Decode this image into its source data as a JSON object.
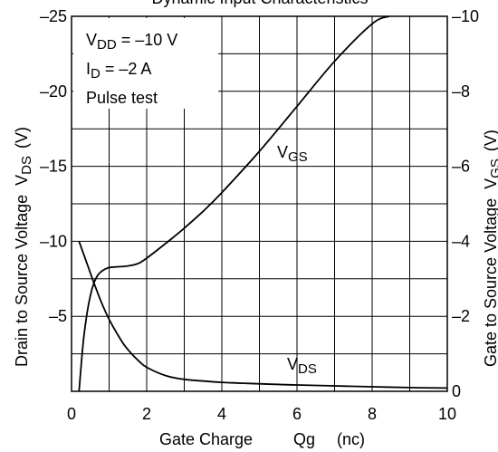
{
  "chart_data": {
    "type": "line",
    "title": "Dynamic Input Characteristics",
    "xlabel": {
      "main": "Gate Charge",
      "symbol": "Qg",
      "unit": "(nc)"
    },
    "ylabel_left": {
      "main": "Drain to Source Voltage",
      "prefix": "V",
      "sub": "DS",
      "unit": "(V)"
    },
    "ylabel_right": {
      "main": "Gate to Source Voltage",
      "prefix": "V",
      "sub": "GS",
      "unit": "(V)"
    },
    "xlim": [
      0,
      10
    ],
    "ylim_left": [
      -25,
      0
    ],
    "ylim_right": [
      -10,
      0
    ],
    "x_ticks": [
      "0",
      "2",
      "4",
      "6",
      "8",
      "10"
    ],
    "y_left_ticks": [
      "–25",
      "–20",
      "–15",
      "–10",
      "–5"
    ],
    "y_right_ticks": [
      "–10",
      "–8",
      "–6",
      "–4",
      "–2",
      "0"
    ],
    "grid": true,
    "conditions": [
      {
        "prefix": "V",
        "sub": "DD",
        "suffix": " = –10 V"
      },
      {
        "prefix": "I",
        "sub": "D",
        "suffix": " = –2 A"
      },
      {
        "prefix": "",
        "sub": "",
        "suffix": "Pulse test"
      }
    ],
    "series": [
      {
        "name": "VGS",
        "label": {
          "prefix": "V",
          "sub": "GS"
        },
        "axis": "right",
        "x": [
          0.2,
          0.3,
          0.4,
          0.5,
          0.6,
          0.7,
          0.8,
          0.9,
          1.0,
          1.2,
          1.4,
          1.6,
          1.8,
          2.0,
          2.3,
          2.7,
          3.0,
          3.5,
          4.0,
          5.0,
          6.0,
          7.0,
          8.0,
          8.45
        ],
        "values": [
          0,
          -1.2,
          -2.0,
          -2.55,
          -2.9,
          -3.1,
          -3.2,
          -3.26,
          -3.3,
          -3.32,
          -3.33,
          -3.36,
          -3.42,
          -3.55,
          -3.78,
          -4.1,
          -4.35,
          -4.8,
          -5.3,
          -6.4,
          -7.6,
          -8.8,
          -9.8,
          -10.0
        ]
      },
      {
        "name": "VDS",
        "label": {
          "prefix": "V",
          "sub": "DS"
        },
        "axis": "left",
        "x": [
          0.2,
          0.4,
          0.6,
          0.8,
          1.0,
          1.2,
          1.4,
          1.6,
          1.8,
          2.0,
          2.5,
          3.0,
          4.0,
          5.0,
          6.0,
          7.0,
          8.0,
          9.0,
          10.0
        ],
        "values": [
          -10.0,
          -8.6,
          -7.2,
          -5.9,
          -4.8,
          -3.9,
          -3.1,
          -2.5,
          -2.0,
          -1.6,
          -1.05,
          -0.8,
          -0.6,
          -0.5,
          -0.42,
          -0.36,
          -0.3,
          -0.25,
          -0.22
        ]
      }
    ]
  }
}
